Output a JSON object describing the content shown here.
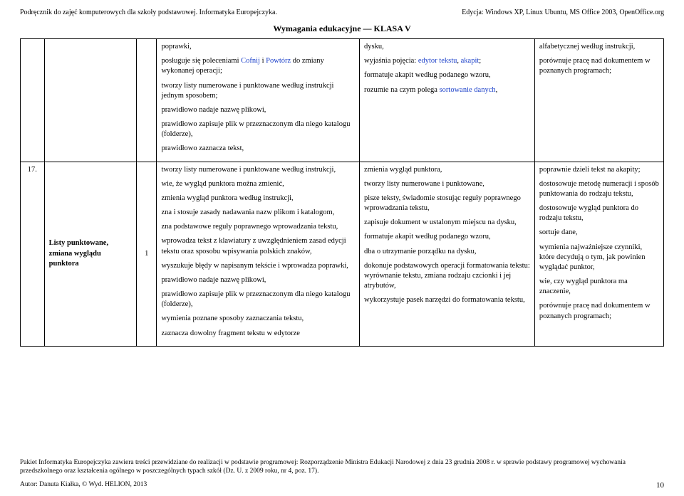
{
  "header": {
    "left": "Podręcznik do zajęć komputerowych dla szkoły podstawowej. Informatyka Europejczyka.",
    "right": "Edycja: Windows XP, Linux Ubuntu, MS Office 2003, OpenOffice.org"
  },
  "title": "Wymagania edukacyjne — KLASA V",
  "row_cont": {
    "colA": [
      "poprawki,",
      {
        "pre": "posługuje się poleceniami ",
        "blue": "Cofnij",
        "mid": " i ",
        "blue2": "Powtórz",
        "post": " do zmiany wykonanej operacji;"
      },
      "tworzy listy numerowane i punktowane według instrukcji jednym sposobem;",
      "prawidłowo nadaje nazwę plikowi,",
      "prawidłowo zapisuje plik w przeznaczonym dla niego katalogu (folderze),",
      "prawidłowo zaznacza tekst,"
    ],
    "colB": [
      "dysku,",
      {
        "pre": "wyjaśnia pojęcia: ",
        "blue": "edytor tekstu",
        "mid": ", ",
        "blue2": "akapit",
        "post": ";"
      },
      "formatuje akapit według podanego wzoru,",
      {
        "pre": "rozumie na czym polega ",
        "blue": "sortowanie danych",
        "post": ","
      }
    ],
    "colC": [
      "alfabetycznej według instrukcji,",
      "porównuje pracę nad dokumentem w poznanych programach;"
    ]
  },
  "row17": {
    "num": "17.",
    "topic": "Listy punktowane, zmiana wyglądu punktora",
    "hours": "1",
    "colA": [
      "tworzy listy numerowane i punktowane według instrukcji,",
      "wie, że wygląd punktora można zmienić,",
      "zmienia wygląd punktora według instrukcji,",
      "zna i stosuje zasady nadawania nazw plikom i katalogom,",
      "zna podstawowe reguły poprawnego wprowadzania tekstu,",
      "wprowadza tekst z klawiatury z uwzględnieniem zasad edycji tekstu oraz sposobu wpisywania polskich znaków,",
      "wyszukuje błędy w napisanym tekście i wprowadza poprawki,",
      "prawidłowo nadaje nazwę plikowi,",
      "prawidłowo zapisuje plik w przeznaczonym dla niego katalogu (folderze),",
      "wymienia poznane sposoby zaznaczania tekstu,",
      "zaznacza dowolny fragment tekstu w edytorze"
    ],
    "colB": [
      "zmienia wygląd punktora,",
      "tworzy listy numerowane i punktowane,",
      "pisze teksty, świadomie stosując reguły poprawnego wprowadzania tekstu,",
      "zapisuje dokument w ustalonym miejscu na dysku,",
      "formatuje akapit według podanego wzoru,",
      "dba o utrzymanie porządku na dysku,",
      "dokonuje podstawowych operacji formatowania tekstu: wyrównanie tekstu, zmiana rodzaju czcionki i jej atrybutów,",
      "wykorzystuje pasek narzędzi do formatowania tekstu,"
    ],
    "colC": [
      "poprawnie dzieli tekst na akapity;",
      "dostosowuje metodę numeracji i sposób punktowania do rodzaju tekstu,",
      "dostosowuje wygląd punktora do rodzaju tekstu,",
      "sortuje dane,",
      "wymienia najważniejsze czynniki, które decydują o tym, jak powinien wyglądać punktor,",
      "wie, czy wygląd punktora ma znaczenie,",
      "porównuje pracę nad dokumentem w poznanych programach;"
    ]
  },
  "footer": {
    "line1": "Pakiet Informatyka Europejczyka zawiera treści przewidziane do realizacji w podstawie programowej: Rozporządzenie Ministra Edukacji Narodowej z dnia 23 grudnia 2008 r. w sprawie podstawy programowej wychowania przedszkolnego oraz kształcenia ogólnego w poszczególnych typach szkół (Dz. U. z 2009 roku, nr 4, poz. 17).",
    "line2_left": "Autor: Danuta Kiałka, © Wyd. HELION, 2013",
    "page": "10"
  }
}
